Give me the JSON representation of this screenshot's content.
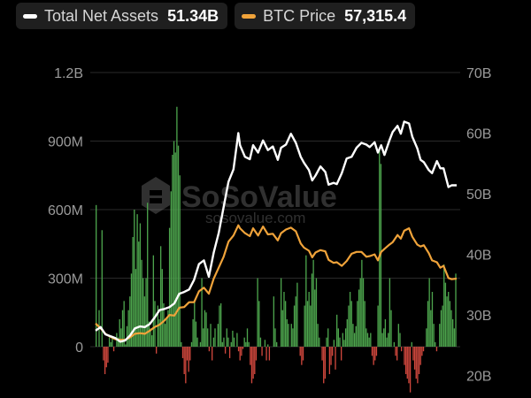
{
  "legend": {
    "items": [
      {
        "label": "Total Net Assets",
        "value": "51.34B",
        "color": "#ffffff"
      },
      {
        "label": "BTC Price",
        "value": "57,315.4",
        "color": "#f0a33a"
      }
    ]
  },
  "watermark": {
    "brand": "SoSoValue",
    "url": "sosovalue.com"
  },
  "chart_data": {
    "type": "bar+line",
    "title": "",
    "left_axis": {
      "ticks": [
        "1.2B",
        "900M",
        "600M",
        "300M",
        "0"
      ],
      "tick_values": [
        1200,
        900,
        600,
        300,
        0
      ],
      "unit": "M",
      "range": [
        -160,
        1200
      ]
    },
    "right_axis": {
      "ticks": [
        "70B",
        "60B",
        "50B",
        "40B",
        "30B",
        "20B"
      ],
      "tick_values": [
        70,
        60,
        50,
        40,
        30,
        20
      ],
      "unit": "B",
      "range": [
        16.3,
        70
      ]
    },
    "colors": {
      "inflow": "#4ca34c",
      "outflow": "#d0473d",
      "net_assets": "#ffffff",
      "btc_price": "#f0a33a"
    },
    "daily_net_inflow_M": [
      620,
      0,
      160,
      0,
      510,
      -60,
      -120,
      -90,
      -70,
      40,
      20,
      40,
      -20,
      0,
      60,
      40,
      120,
      80,
      160,
      200,
      10,
      90,
      160,
      220,
      320,
      480,
      600,
      340,
      580,
      460,
      540,
      380,
      300,
      220,
      300,
      630,
      110,
      80,
      50,
      400,
      200,
      -30,
      180,
      120,
      440,
      340,
      190,
      100,
      120,
      160,
      520,
      680,
      840,
      900,
      850,
      1050,
      880,
      750,
      20,
      -50,
      -120,
      -160,
      -60,
      -110,
      -60,
      20,
      120,
      200,
      110,
      40,
      0,
      20,
      300,
      80,
      160,
      150,
      80,
      -20,
      100,
      -60,
      40,
      80,
      0,
      100,
      180,
      190,
      20,
      40,
      -30,
      80,
      40,
      -50,
      20,
      70,
      40,
      0,
      60,
      -20,
      -60,
      -40,
      -10,
      40,
      20,
      80,
      20,
      -80,
      -160,
      -140,
      -120,
      -60,
      300,
      200,
      40,
      -40,
      0,
      30,
      -60,
      10,
      -60,
      0,
      0,
      220,
      80,
      20,
      0,
      0,
      300,
      160,
      240,
      200,
      120,
      100,
      0,
      100,
      80,
      180,
      220,
      280,
      0,
      -40,
      -80,
      -60,
      180,
      400,
      200,
      240,
      180,
      320,
      380,
      250,
      300,
      100,
      40,
      0,
      -60,
      -160,
      -140,
      40,
      80,
      -120,
      -80,
      -40,
      30,
      -100,
      140,
      80,
      40,
      -60,
      60,
      30,
      80,
      120,
      180,
      240,
      200,
      100,
      60,
      90,
      200,
      250,
      300,
      380,
      300,
      200,
      80,
      60,
      40,
      60,
      -40,
      -80,
      -60,
      -40,
      180,
      860,
      800,
      60,
      80,
      120,
      40,
      60,
      300,
      160,
      0,
      20,
      -40,
      -60,
      100,
      60,
      -20,
      0,
      -80,
      -120,
      -140,
      -160,
      -200,
      20,
      -60,
      -100,
      -140,
      -160,
      -120,
      -80,
      -40,
      -20,
      0,
      80,
      200,
      300,
      160,
      240,
      100,
      20,
      -20,
      0,
      100,
      160,
      180,
      360,
      280,
      220,
      240,
      200,
      160,
      120,
      80,
      320
    ],
    "total_net_assets_B": [
      [
        0,
        27.4
      ],
      [
        3,
        28.0
      ],
      [
        6,
        26.8
      ],
      [
        9,
        26.5
      ],
      [
        12,
        26.2
      ],
      [
        15,
        25.6
      ],
      [
        18,
        25.8
      ],
      [
        21,
        26.6
      ],
      [
        24,
        27.8
      ],
      [
        27,
        28.1
      ],
      [
        30,
        28.0
      ],
      [
        33,
        28.5
      ],
      [
        36,
        29.6
      ],
      [
        39,
        30.8
      ],
      [
        42,
        31.0
      ],
      [
        45,
        31.3
      ],
      [
        48,
        31.9
      ],
      [
        51,
        33.5
      ],
      [
        54,
        33.8
      ],
      [
        57,
        34.2
      ],
      [
        60,
        35.8
      ],
      [
        63,
        38.4
      ],
      [
        66,
        39.0
      ],
      [
        69,
        36.3
      ],
      [
        72,
        40.3
      ],
      [
        75,
        43.5
      ],
      [
        78,
        47.8
      ],
      [
        81,
        52.0
      ],
      [
        84,
        54.0
      ],
      [
        87,
        60.0
      ],
      [
        88,
        58.0
      ],
      [
        91,
        56.1
      ],
      [
        94,
        55.7
      ],
      [
        96,
        58.0
      ],
      [
        99,
        56.8
      ],
      [
        102,
        58.8
      ],
      [
        105,
        57.2
      ],
      [
        108,
        57.8
      ],
      [
        111,
        55.6
      ],
      [
        113,
        57.6
      ],
      [
        116,
        58.1
      ],
      [
        119,
        59.9
      ],
      [
        122,
        58.4
      ],
      [
        125,
        56.1
      ],
      [
        127,
        55.1
      ],
      [
        130,
        53.9
      ],
      [
        132,
        52.2
      ],
      [
        134,
        53.0
      ],
      [
        137,
        54.5
      ],
      [
        140,
        53.6
      ],
      [
        142,
        51.5
      ],
      [
        145,
        51.8
      ],
      [
        147,
        51.6
      ],
      [
        150,
        53.4
      ],
      [
        153,
        55.8
      ],
      [
        156,
        56.1
      ],
      [
        159,
        57.6
      ],
      [
        162,
        58.4
      ],
      [
        165,
        58.1
      ],
      [
        167,
        57.7
      ],
      [
        170,
        58.5
      ],
      [
        172,
        56.8
      ],
      [
        174,
        58.0
      ],
      [
        176,
        56.4
      ],
      [
        179,
        58.8
      ],
      [
        181,
        60.2
      ],
      [
        184,
        61.2
      ],
      [
        186,
        59.9
      ],
      [
        188,
        61.9
      ],
      [
        191,
        61.6
      ],
      [
        193,
        59.4
      ],
      [
        196,
        57.5
      ],
      [
        198,
        55.6
      ],
      [
        200,
        55.2
      ],
      [
        203,
        53.9
      ],
      [
        205,
        53.4
      ],
      [
        208,
        55.4
      ],
      [
        210,
        54.2
      ],
      [
        212,
        54.2
      ],
      [
        215,
        51.1
      ],
      [
        217,
        51.4
      ],
      [
        220,
        51.4
      ]
    ],
    "btc_price_B": [
      [
        0,
        28.6
      ],
      [
        3,
        27.8
      ],
      [
        6,
        26.9
      ],
      [
        9,
        26.4
      ],
      [
        12,
        26.0
      ],
      [
        15,
        25.9
      ],
      [
        18,
        25.9
      ],
      [
        21,
        26.3
      ],
      [
        24,
        26.9
      ],
      [
        27,
        27.0
      ],
      [
        30,
        26.9
      ],
      [
        33,
        27.4
      ],
      [
        36,
        28.0
      ],
      [
        39,
        28.4
      ],
      [
        42,
        29.1
      ],
      [
        45,
        30.0
      ],
      [
        48,
        29.9
      ],
      [
        51,
        31.2
      ],
      [
        54,
        31.3
      ],
      [
        57,
        32.1
      ],
      [
        60,
        32.1
      ],
      [
        63,
        33.9
      ],
      [
        66,
        34.5
      ],
      [
        69,
        33.5
      ],
      [
        72,
        36.0
      ],
      [
        75,
        37.8
      ],
      [
        78,
        39.6
      ],
      [
        81,
        42.1
      ],
      [
        84,
        43.1
      ],
      [
        87,
        44.8
      ],
      [
        88,
        44.3
      ],
      [
        91,
        43.5
      ],
      [
        94,
        43.0
      ],
      [
        96,
        44.3
      ],
      [
        99,
        43.1
      ],
      [
        102,
        44.6
      ],
      [
        105,
        43.3
      ],
      [
        108,
        43.4
      ],
      [
        111,
        42.3
      ],
      [
        113,
        43.5
      ],
      [
        116,
        44.1
      ],
      [
        119,
        44.4
      ],
      [
        122,
        43.8
      ],
      [
        125,
        41.8
      ],
      [
        127,
        41.1
      ],
      [
        130,
        40.6
      ],
      [
        132,
        39.5
      ],
      [
        134,
        40.3
      ],
      [
        137,
        40.7
      ],
      [
        140,
        40.5
      ],
      [
        142,
        39.1
      ],
      [
        145,
        38.6
      ],
      [
        147,
        38.7
      ],
      [
        150,
        38.1
      ],
      [
        153,
        38.9
      ],
      [
        156,
        40.1
      ],
      [
        159,
        40.4
      ],
      [
        162,
        40.4
      ],
      [
        165,
        39.6
      ],
      [
        167,
        39.7
      ],
      [
        170,
        40.0
      ],
      [
        172,
        39.0
      ],
      [
        174,
        40.4
      ],
      [
        176,
        40.9
      ],
      [
        179,
        41.6
      ],
      [
        181,
        42.0
      ],
      [
        184,
        43.2
      ],
      [
        186,
        42.6
      ],
      [
        188,
        43.9
      ],
      [
        191,
        44.3
      ],
      [
        193,
        42.9
      ],
      [
        196,
        41.6
      ],
      [
        198,
        41.3
      ],
      [
        200,
        41.5
      ],
      [
        203,
        40.2
      ],
      [
        205,
        39.0
      ],
      [
        208,
        38.7
      ],
      [
        210,
        37.8
      ],
      [
        212,
        38.1
      ],
      [
        215,
        36.1
      ],
      [
        217,
        35.9
      ],
      [
        220,
        36.0
      ]
    ]
  }
}
